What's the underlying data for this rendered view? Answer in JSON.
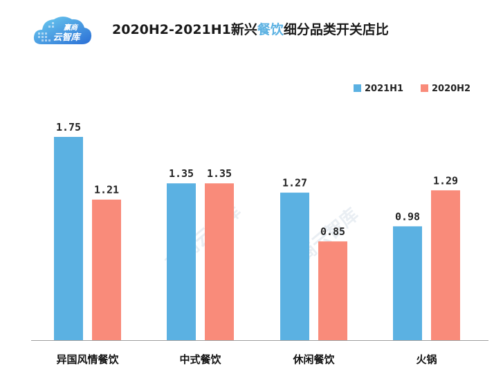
{
  "logo": {
    "line1": "赢商",
    "line2": "云智库"
  },
  "title": {
    "prefix": "2020H2-2021H1新兴",
    "highlight": "餐饮",
    "suffix": "细分品类开关店比"
  },
  "colors": {
    "series1": "#5bb1e2",
    "series2": "#f98b7a",
    "title_highlight": "#5bb1e2",
    "axis": "#9e9e9e"
  },
  "watermark": "赢商云智库",
  "chart_data": {
    "type": "bar",
    "title": "2020H2-2021H1新兴餐饮细分品类开关店比",
    "categories": [
      "异国风情餐饮",
      "中式餐饮",
      "休闲餐饮",
      "火锅"
    ],
    "series": [
      {
        "name": "2021H1",
        "values": [
          1.75,
          1.35,
          1.27,
          0.98
        ],
        "labels": [
          "1.75",
          "1.35",
          "1.27",
          "0.98"
        ]
      },
      {
        "name": "2020H2",
        "values": [
          1.21,
          1.35,
          0.85,
          1.29
        ],
        "labels": [
          "1.21",
          "1.35",
          "0.85",
          "1.29"
        ]
      }
    ],
    "xlabel": "",
    "ylabel": "",
    "ylim": [
      0,
      1.75
    ],
    "grid": false,
    "legend": "top-right"
  }
}
